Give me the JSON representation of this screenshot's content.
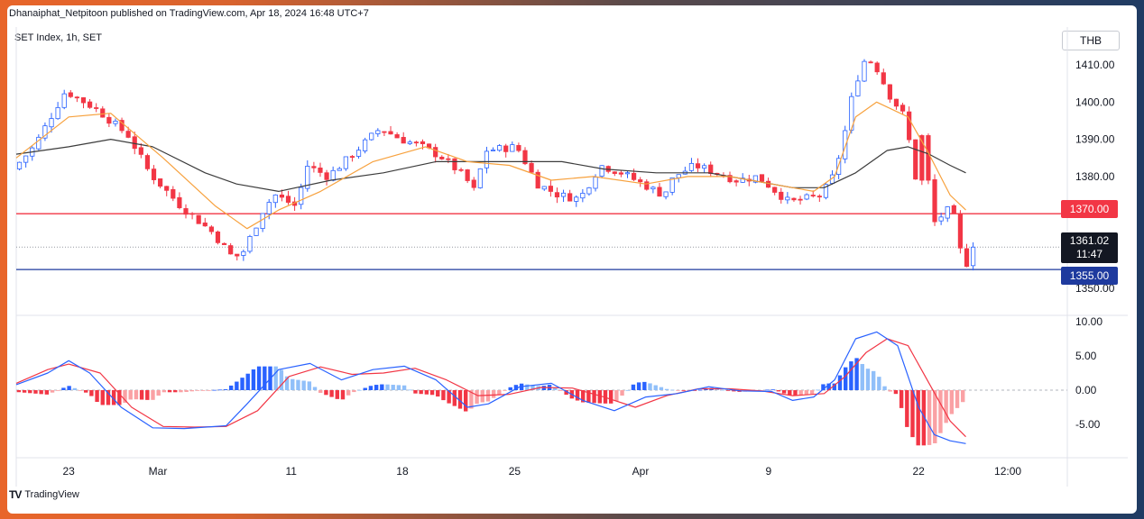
{
  "header": {
    "published": "Dhanaiphat_Netpitoon published on TradingView.com, Apr 18, 2024 16:48 UTC+7",
    "symbol": "SET Index, 1h, SET",
    "currency": "THB"
  },
  "footer": {
    "logo_text": "TradingView",
    "logo_mark": "TV"
  },
  "colors": {
    "up": "#2962ff",
    "down": "#f23645",
    "ema_fast": "#f7a13d",
    "sma_slow": "#3c3c3c",
    "macd": "#2962ff",
    "signal": "#f23645",
    "hist_up": "#2962ff",
    "hist_up_light": "#90bff9",
    "hist_down": "#f23645",
    "hist_down_light": "#faa1a4",
    "resistance": "#f23645",
    "support": "#1e3a9e"
  },
  "price_axis": {
    "ticks": [
      "1410.00",
      "1400.00",
      "1390.00",
      "1380.00",
      "1350.00"
    ]
  },
  "macd_axis": {
    "ticks": [
      "10.00",
      "5.00",
      "0.00",
      "-5.00"
    ]
  },
  "time_axis": {
    "ticks": [
      "23",
      "Mar",
      "11",
      "18",
      "25",
      "Apr",
      "9",
      "22",
      "12:00"
    ]
  },
  "price_labels": {
    "resistance": "1370.00",
    "last": "1361.02",
    "countdown": "11:47",
    "support": "1355.00"
  },
  "chart_data": [
    {
      "type": "candlestick",
      "title": "SET Index, 1h, SET",
      "unit": "THB",
      "ylim": [
        1347,
        1414
      ],
      "levels": {
        "resistance": 1370.0,
        "support": 1355.0,
        "last": 1361.02
      },
      "path_points": [
        [
          0,
          1382
        ],
        [
          0.02,
          1388
        ],
        [
          0.05,
          1403
        ],
        [
          0.08,
          1398
        ],
        [
          0.11,
          1391
        ],
        [
          0.13,
          1381
        ],
        [
          0.16,
          1372
        ],
        [
          0.19,
          1365
        ],
        [
          0.21,
          1358
        ],
        [
          0.22,
          1360
        ],
        [
          0.24,
          1372
        ],
        [
          0.25,
          1375
        ],
        [
          0.27,
          1372
        ],
        [
          0.28,
          1383
        ],
        [
          0.3,
          1380
        ],
        [
          0.32,
          1385
        ],
        [
          0.35,
          1393
        ],
        [
          0.37,
          1390
        ],
        [
          0.39,
          1388
        ],
        [
          0.41,
          1385
        ],
        [
          0.43,
          1380
        ],
        [
          0.44,
          1376
        ],
        [
          0.45,
          1387
        ],
        [
          0.48,
          1388
        ],
        [
          0.5,
          1378
        ],
        [
          0.52,
          1375
        ],
        [
          0.54,
          1374
        ],
        [
          0.56,
          1383
        ],
        [
          0.58,
          1381
        ],
        [
          0.6,
          1378
        ],
        [
          0.62,
          1375
        ],
        [
          0.63,
          1380
        ],
        [
          0.65,
          1383
        ],
        [
          0.67,
          1381
        ],
        [
          0.69,
          1379
        ],
        [
          0.71,
          1380
        ],
        [
          0.74,
          1373
        ],
        [
          0.77,
          1375
        ],
        [
          0.78,
          1379
        ],
        [
          0.79,
          1388
        ],
        [
          0.8,
          1402
        ],
        [
          0.81,
          1411
        ],
        [
          0.82,
          1411
        ],
        [
          0.835,
          1402
        ],
        [
          0.85,
          1396
        ],
        [
          0.86,
          1380
        ],
        [
          0.87,
          1366
        ],
        [
          0.88,
          1368
        ],
        [
          0.89,
          1371
        ],
        [
          0.9,
          1368
        ],
        [
          0.905,
          1354
        ],
        [
          0.915,
          1361
        ]
      ],
      "gap_points": [
        [
          0.865,
          1393
        ],
        [
          0.868,
          1377
        ]
      ],
      "ema_fast": [
        [
          0,
          1385
        ],
        [
          0.05,
          1396
        ],
        [
          0.09,
          1397
        ],
        [
          0.14,
          1385
        ],
        [
          0.19,
          1372
        ],
        [
          0.22,
          1366
        ],
        [
          0.25,
          1371
        ],
        [
          0.29,
          1376
        ],
        [
          0.34,
          1384
        ],
        [
          0.39,
          1388
        ],
        [
          0.43,
          1384
        ],
        [
          0.47,
          1383
        ],
        [
          0.51,
          1379
        ],
        [
          0.55,
          1380
        ],
        [
          0.6,
          1378
        ],
        [
          0.64,
          1380
        ],
        [
          0.68,
          1380
        ],
        [
          0.72,
          1378
        ],
        [
          0.76,
          1376
        ],
        [
          0.78,
          1380
        ],
        [
          0.8,
          1396
        ],
        [
          0.82,
          1400
        ],
        [
          0.85,
          1396
        ],
        [
          0.87,
          1386
        ],
        [
          0.89,
          1375
        ],
        [
          0.905,
          1371
        ]
      ],
      "sma_slow": [
        [
          0,
          1386
        ],
        [
          0.05,
          1388
        ],
        [
          0.09,
          1390
        ],
        [
          0.13,
          1388
        ],
        [
          0.18,
          1381
        ],
        [
          0.21,
          1378
        ],
        [
          0.25,
          1376
        ],
        [
          0.3,
          1379
        ],
        [
          0.35,
          1381
        ],
        [
          0.4,
          1384
        ],
        [
          0.44,
          1384
        ],
        [
          0.48,
          1384
        ],
        [
          0.52,
          1384
        ],
        [
          0.56,
          1382
        ],
        [
          0.61,
          1381
        ],
        [
          0.66,
          1381
        ],
        [
          0.7,
          1379
        ],
        [
          0.74,
          1377
        ],
        [
          0.77,
          1377
        ],
        [
          0.8,
          1381
        ],
        [
          0.83,
          1387
        ],
        [
          0.85,
          1388
        ],
        [
          0.87,
          1386
        ],
        [
          0.89,
          1383
        ],
        [
          0.905,
          1381
        ]
      ]
    },
    {
      "type": "line",
      "title": "MACD",
      "ylim": [
        -8.5,
        10.5
      ],
      "macd": [
        [
          0,
          0.8
        ],
        [
          0.03,
          2.5
        ],
        [
          0.05,
          4.3
        ],
        [
          0.07,
          2.5
        ],
        [
          0.1,
          -2.5
        ],
        [
          0.13,
          -5.5
        ],
        [
          0.16,
          -5.6
        ],
        [
          0.2,
          -5.2
        ],
        [
          0.22,
          -2.0
        ],
        [
          0.25,
          3.0
        ],
        [
          0.28,
          3.9
        ],
        [
          0.31,
          1.5
        ],
        [
          0.34,
          3.0
        ],
        [
          0.37,
          3.5
        ],
        [
          0.4,
          1.5
        ],
        [
          0.43,
          -2.5
        ],
        [
          0.45,
          -2.0
        ],
        [
          0.48,
          0.5
        ],
        [
          0.51,
          1.0
        ],
        [
          0.54,
          -1.5
        ],
        [
          0.57,
          -3.0
        ],
        [
          0.6,
          -1.0
        ],
        [
          0.63,
          -0.5
        ],
        [
          0.66,
          0.5
        ],
        [
          0.69,
          -0.1
        ],
        [
          0.72,
          -0.2
        ],
        [
          0.74,
          -1.5
        ],
        [
          0.76,
          -1.0
        ],
        [
          0.78,
          1.5
        ],
        [
          0.8,
          7.5
        ],
        [
          0.82,
          8.5
        ],
        [
          0.84,
          6.5
        ],
        [
          0.86,
          -2.5
        ],
        [
          0.875,
          -6.5
        ],
        [
          0.89,
          -7.4
        ],
        [
          0.905,
          -7.8
        ]
      ],
      "signal": [
        [
          0,
          1.0
        ],
        [
          0.03,
          3.0
        ],
        [
          0.05,
          3.8
        ],
        [
          0.08,
          2.5
        ],
        [
          0.11,
          -2.5
        ],
        [
          0.14,
          -5.3
        ],
        [
          0.17,
          -5.4
        ],
        [
          0.2,
          -5.3
        ],
        [
          0.23,
          -3.0
        ],
        [
          0.26,
          2.0
        ],
        [
          0.29,
          3.4
        ],
        [
          0.32,
          2.3
        ],
        [
          0.35,
          2.5
        ],
        [
          0.38,
          3.2
        ],
        [
          0.41,
          1.5
        ],
        [
          0.44,
          -0.8
        ],
        [
          0.47,
          -0.6
        ],
        [
          0.5,
          0.4
        ],
        [
          0.53,
          0.3
        ],
        [
          0.56,
          -1.0
        ],
        [
          0.59,
          -2.5
        ],
        [
          0.62,
          -0.8
        ],
        [
          0.65,
          0.2
        ],
        [
          0.68,
          0.2
        ],
        [
          0.71,
          -0.1
        ],
        [
          0.74,
          -0.8
        ],
        [
          0.77,
          -0.5
        ],
        [
          0.79,
          2.0
        ],
        [
          0.81,
          5.5
        ],
        [
          0.83,
          7.5
        ],
        [
          0.85,
          6.5
        ],
        [
          0.87,
          1.0
        ],
        [
          0.89,
          -4.5
        ],
        [
          0.905,
          -6.8
        ]
      ],
      "histogram_span": [
        0,
        0.905
      ]
    }
  ]
}
